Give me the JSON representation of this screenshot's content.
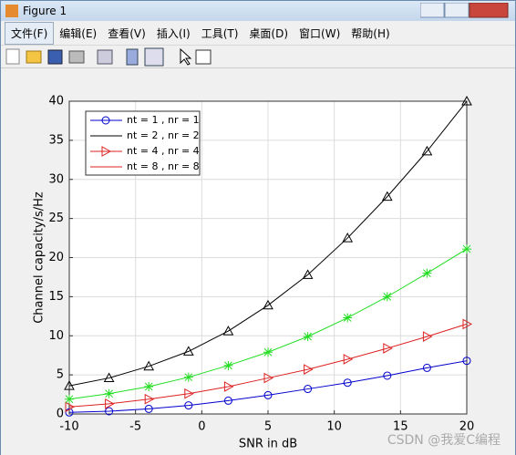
{
  "window": {
    "title": "Figure 1",
    "menus": [
      "文件(F)",
      "编辑(E)",
      "查看(V)",
      "插入(I)",
      "工具(T)",
      "桌面(D)",
      "窗口(W)",
      "帮助(H)"
    ]
  },
  "chart_data": {
    "type": "line",
    "xlabel": "SNR in dB",
    "ylabel": "Channel capacity/s/Hz",
    "x": [
      -10,
      -7,
      -4,
      -1,
      2,
      5,
      8,
      11,
      14,
      17,
      20
    ],
    "xlim": [
      -10,
      20
    ],
    "xticks": [
      -10,
      -5,
      0,
      5,
      10,
      15,
      20
    ],
    "ylim": [
      0,
      40
    ],
    "yticks": [
      0,
      5,
      10,
      15,
      20,
      25,
      30,
      35,
      40
    ],
    "grid": true,
    "series": [
      {
        "color": "#0000cc",
        "marker": "circle",
        "values": [
          0.2,
          0.35,
          0.65,
          1.1,
          1.7,
          2.4,
          3.2,
          4.0,
          4.9,
          5.9,
          6.8
        ]
      },
      {
        "color": "#dd2222",
        "marker": "triangle-right",
        "values": [
          0.9,
          1.3,
          1.9,
          2.6,
          3.5,
          4.6,
          5.7,
          7.0,
          8.4,
          9.9,
          11.5
        ]
      },
      {
        "color": "#22dd22",
        "marker": "asterisk",
        "values": [
          1.9,
          2.6,
          3.5,
          4.7,
          6.2,
          7.9,
          9.9,
          12.3,
          15.0,
          18.0,
          21.1
        ]
      },
      {
        "color": "#000000",
        "marker": "triangle-up",
        "values": [
          3.6,
          4.6,
          6.1,
          8.0,
          10.6,
          13.9,
          17.8,
          22.5,
          27.8,
          33.6,
          40
        ]
      }
    ],
    "legend": [
      {
        "name": "nt = 1 , nr = 1",
        "color": "#0000cc",
        "marker": "circle"
      },
      {
        "name": "nt = 2 , nr = 2",
        "color": "#000000",
        "marker": "none"
      },
      {
        "name": "nt = 4 , nr = 4",
        "color": "#dd2222",
        "marker": "triangle-right"
      },
      {
        "name": "nt = 8 , nr = 8",
        "color": "#dd2222",
        "marker": "none"
      }
    ],
    "legend_corner": "upper left",
    "watermark": "CSDN @我爱C编程"
  }
}
